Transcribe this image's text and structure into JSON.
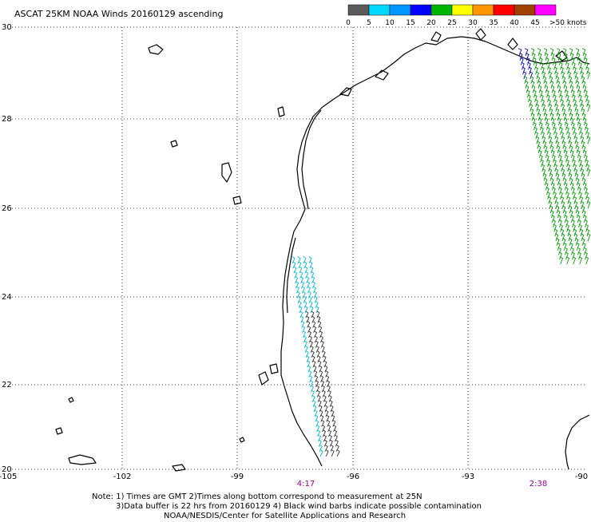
{
  "title": "ASCAT 25KM NOAA Winds 20160129 ascending",
  "legend": {
    "labels": [
      "0",
      "5",
      "10",
      "15",
      "20",
      "25",
      "30",
      "35",
      "40",
      "45",
      ">50 knots"
    ],
    "colors": [
      "#5a5a5a",
      "#00d8ff",
      "#0096ff",
      "#0000ff",
      "#00b400",
      "#ffff00",
      "#ff9600",
      "#ff0000",
      "#a04000",
      "#ff00ff",
      "#500096"
    ]
  },
  "axes": {
    "lat_labels": [
      "30",
      "28",
      "26",
      "24",
      "22",
      "20"
    ],
    "lon_labels": [
      "-105",
      "-102",
      "-99",
      "-96",
      "-93",
      "-90"
    ]
  },
  "pass_times": [
    "4:17",
    "2:38"
  ],
  "notes": [
    "Note: 1) Times are GMT 2)Times along bottom correspond to measurement at 25N",
    "3)Data buffer is 22 hrs from 20160129 4) Black wind barbs indicate possible contamination",
    "NOAA/NESDIS/Center for Satellite Applications and Research"
  ],
  "colors": {
    "coast": "#000000",
    "grid": "#000000",
    "barb_green": "#00a000",
    "barb_cyan": "#00bcd4",
    "barb_blue": "#0000cc",
    "barb_black": "#333333",
    "time_label": "#990099"
  }
}
